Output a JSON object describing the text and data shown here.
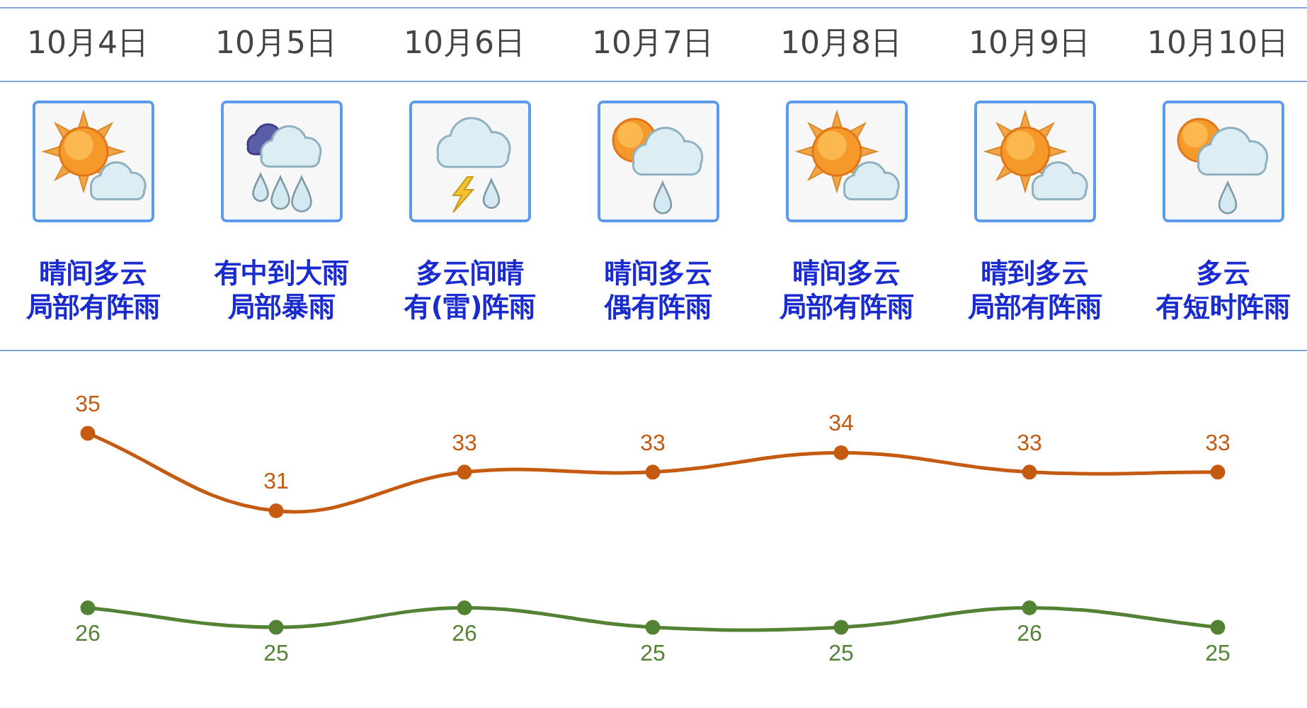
{
  "chart_data": {
    "type": "line",
    "categories": [
      "10月4日",
      "10月5日",
      "10月6日",
      "10月7日",
      "10月8日",
      "10月9日",
      "10月10日"
    ],
    "series": [
      {
        "color": "#c55a11",
        "values": [
          35,
          31,
          33,
          33,
          34,
          33,
          33
        ]
      },
      {
        "color": "#548235",
        "values": [
          26,
          25,
          26,
          25,
          25,
          26,
          25
        ]
      }
    ],
    "tick_labels": "x",
    "data_labels": true,
    "marker": "circle",
    "annotations": [
      "晴间多云",
      "局部有阵雨",
      "有中到大雨",
      "局部暴雨",
      "多云间晴",
      "有(雷)阵雨",
      "晴间多云",
      "偶有阵雨",
      "晴间多云",
      "局部有阵雨",
      "晴到多云",
      "局部有阵雨",
      "多云",
      "有短时阵雨"
    ]
  }
}
